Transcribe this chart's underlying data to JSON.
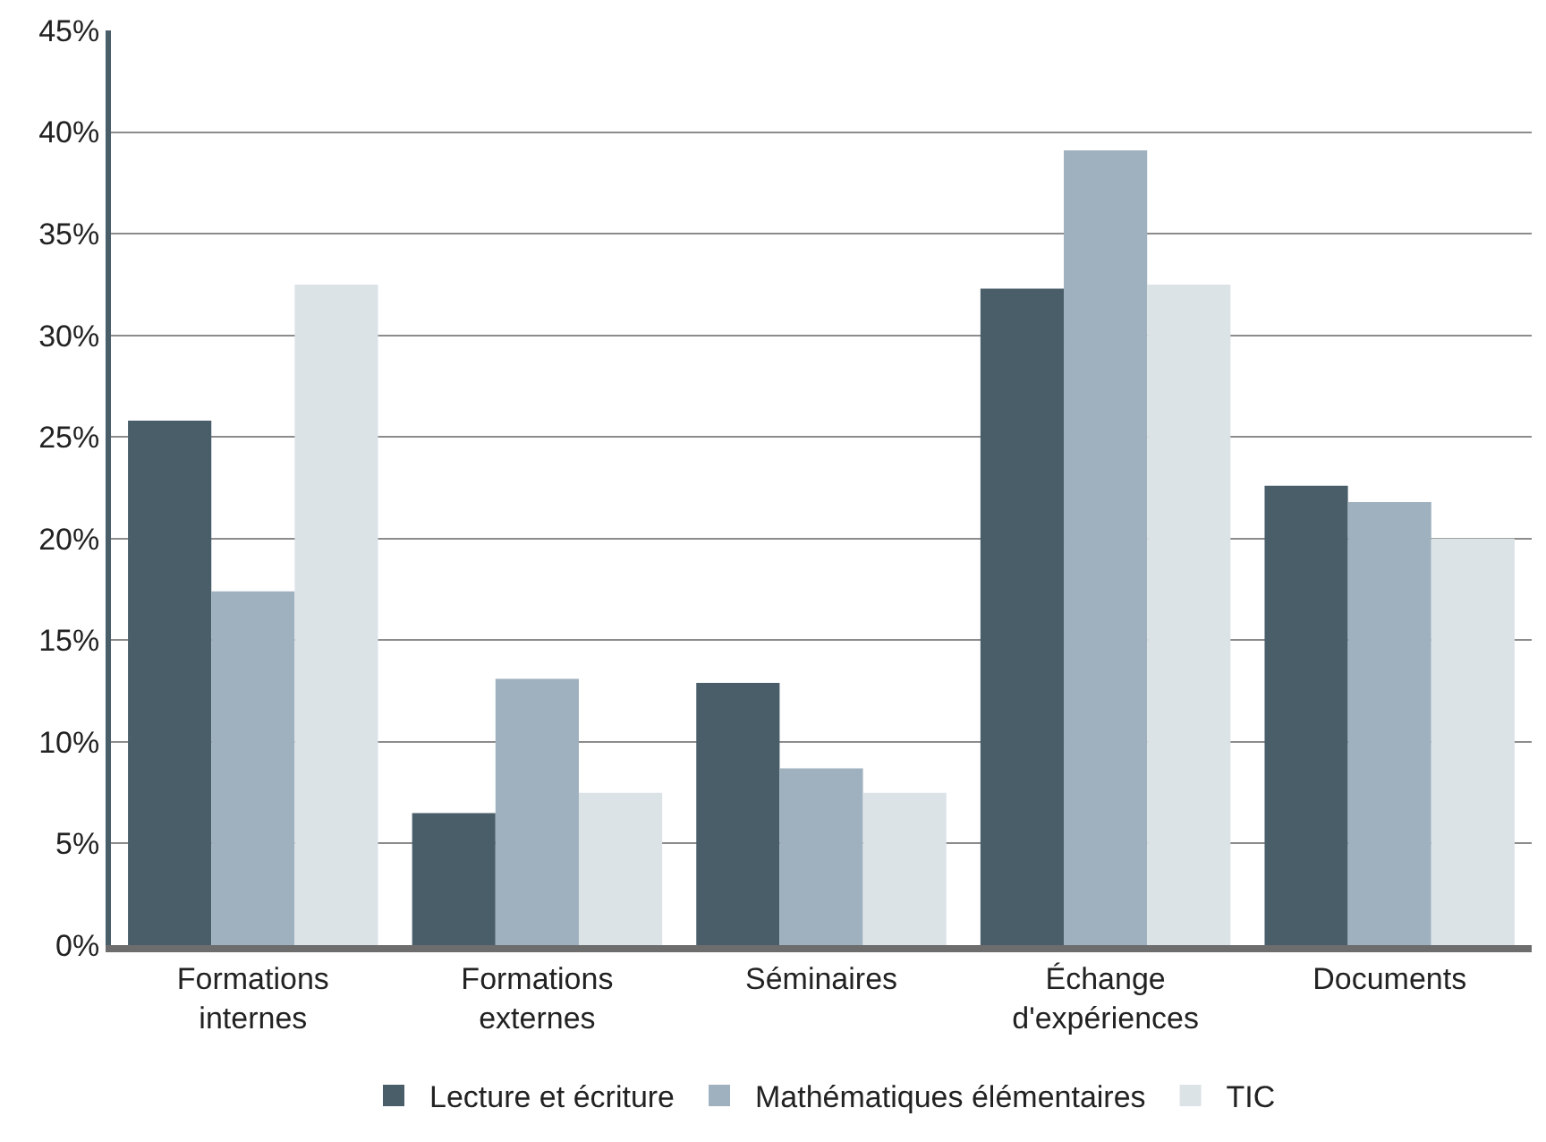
{
  "chart_data": {
    "type": "bar",
    "categories": [
      "Formations internes",
      "Formations externes",
      "Séminaires",
      "Échange d'expériences",
      "Documents"
    ],
    "series": [
      {
        "name": "Lecture et écriture",
        "color": "#4a5e6a",
        "values": [
          25.8,
          6.5,
          12.9,
          32.3,
          22.6
        ]
      },
      {
        "name": "Mathématiques élémentaires",
        "color": "#9fb1bf",
        "values": [
          17.4,
          13.1,
          8.7,
          39.1,
          21.8
        ]
      },
      {
        "name": "TIC",
        "color": "#dce3e7",
        "values": [
          32.5,
          7.5,
          7.5,
          32.5,
          20.0
        ]
      }
    ],
    "ylim": [
      0,
      45
    ],
    "yticks": [
      {
        "value": 0,
        "label": "0%"
      },
      {
        "value": 5,
        "label": "5%"
      },
      {
        "value": 10,
        "label": "10%"
      },
      {
        "value": 15,
        "label": "15%"
      },
      {
        "value": 20,
        "label": "20%"
      },
      {
        "value": 25,
        "label": "25%"
      },
      {
        "value": 30,
        "label": "30%"
      },
      {
        "value": 35,
        "label": "35%"
      },
      {
        "value": 40,
        "label": "40%"
      },
      {
        "value": 45,
        "label": "45%"
      }
    ],
    "grid": "y",
    "legend": "bottom"
  }
}
